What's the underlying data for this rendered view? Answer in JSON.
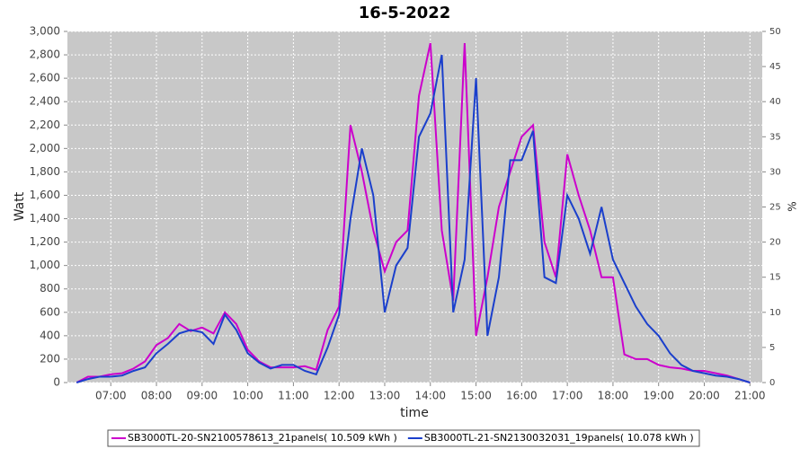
{
  "chart_data": {
    "type": "line",
    "title": "16-5-2022",
    "x_label": "time",
    "y_label": "Watt",
    "y2_label": "%",
    "x": [
      6.25,
      6.5,
      6.75,
      7.0,
      7.25,
      7.5,
      7.75,
      8.0,
      8.25,
      8.5,
      8.75,
      9.0,
      9.25,
      9.5,
      9.75,
      10.0,
      10.25,
      10.5,
      10.75,
      11.0,
      11.25,
      11.5,
      11.75,
      12.0,
      12.25,
      12.5,
      12.75,
      13.0,
      13.25,
      13.5,
      13.75,
      14.0,
      14.25,
      14.5,
      14.75,
      15.0,
      15.25,
      15.5,
      15.75,
      16.0,
      16.25,
      16.5,
      16.75,
      17.0,
      17.25,
      17.5,
      17.75,
      18.0,
      18.25,
      18.5,
      18.75,
      19.0,
      19.25,
      19.5,
      19.75,
      20.0,
      20.25,
      20.5,
      20.75,
      21.0
    ],
    "series": [
      {
        "name": "SB3000TL-20-SN2100578613_21panels( 10.509 kWh )",
        "color": "#cc00cc",
        "values": [
          0,
          50,
          50,
          70,
          80,
          120,
          180,
          320,
          380,
          500,
          440,
          470,
          420,
          600,
          500,
          280,
          180,
          130,
          130,
          130,
          140,
          110,
          450,
          650,
          2200,
          1800,
          1300,
          950,
          1200,
          1300,
          2450,
          2900,
          1300,
          700,
          2900,
          400,
          900,
          1500,
          1800,
          2100,
          2200,
          1200,
          900,
          1950,
          1600,
          1300,
          900,
          900,
          240,
          200,
          200,
          150,
          130,
          120,
          100,
          100,
          80,
          60,
          30,
          0
        ]
      },
      {
        "name": "SB3000TL-21-SN2130032031_19panels( 10.078 kWh )",
        "color": "#1a3fcc",
        "values": [
          0,
          30,
          50,
          50,
          60,
          100,
          130,
          250,
          330,
          420,
          450,
          430,
          330,
          580,
          450,
          250,
          170,
          120,
          150,
          150,
          100,
          70,
          300,
          580,
          1400,
          2000,
          1600,
          600,
          1000,
          1150,
          2100,
          2300,
          2800,
          600,
          1050,
          2600,
          400,
          900,
          1900,
          1900,
          2150,
          900,
          850,
          1600,
          1400,
          1100,
          1500,
          1050,
          850,
          650,
          500,
          400,
          250,
          150,
          100,
          80,
          60,
          50,
          30,
          0
        ]
      }
    ],
    "xlim": [
      6.05,
      21.27
    ],
    "xticks": [
      {
        "value": 7,
        "label": "07:00"
      },
      {
        "value": 8,
        "label": "08:00"
      },
      {
        "value": 9,
        "label": "09:00"
      },
      {
        "value": 10,
        "label": "10:00"
      },
      {
        "value": 11,
        "label": "11:00"
      },
      {
        "value": 12,
        "label": "12:00"
      },
      {
        "value": 13,
        "label": "13:00"
      },
      {
        "value": 14,
        "label": "14:00"
      },
      {
        "value": 15,
        "label": "15:00"
      },
      {
        "value": 16,
        "label": "16:00"
      },
      {
        "value": 17,
        "label": "17:00"
      },
      {
        "value": 18,
        "label": "18:00"
      },
      {
        "value": 19,
        "label": "19:00"
      },
      {
        "value": 20,
        "label": "20:00"
      },
      {
        "value": 21,
        "label": "21:00"
      }
    ],
    "ylim": [
      0,
      3000
    ],
    "yticks": [
      0,
      200,
      400,
      600,
      800,
      {
        "value": 1000,
        "label": "1,000"
      },
      {
        "value": 1200,
        "label": "1,200"
      },
      {
        "value": 1400,
        "label": "1,400"
      },
      {
        "value": 1600,
        "label": "1,600"
      },
      {
        "value": 1800,
        "label": "1,800"
      },
      {
        "value": 2000,
        "label": "2,000"
      },
      {
        "value": 2200,
        "label": "2,200"
      },
      {
        "value": 2400,
        "label": "2,400"
      },
      {
        "value": 2600,
        "label": "2,600"
      },
      {
        "value": 2800,
        "label": "2,800"
      },
      {
        "value": 3000,
        "label": "3,000"
      }
    ],
    "y2lim": [
      0,
      50
    ],
    "y2ticks": [
      0,
      5,
      10,
      15,
      20,
      25,
      30,
      35,
      40,
      45,
      50
    ],
    "grid": true
  }
}
